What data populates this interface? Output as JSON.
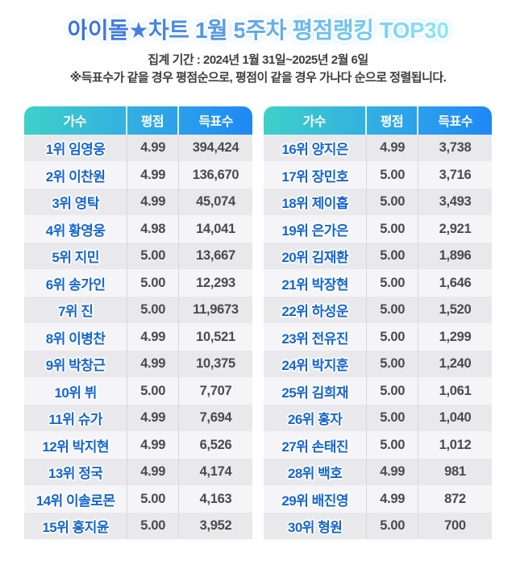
{
  "header": {
    "title": "아이돌★차트 1월 5주차 평점랭킹 TOP30",
    "period": "집계 기간 : 2024년 1월 31일~2025년 2월 6일",
    "note": "※득표수가 같을 경우 평점순으로, 평점이 같을 경우 가나다 순으로 정렬됩니다."
  },
  "colors": {
    "title_gradient_start": "#3b6fe0",
    "title_gradient_end": "#8ae9f7",
    "table_header_gradient_start": "#3fd0c9",
    "table_header_gradient_end": "#1e88f5",
    "name_blue": "#1565d0",
    "number_gray": "#4b4b4d",
    "row_odd_bg": "#e9e9eb",
    "row_even_bg": "#f5f5f7"
  },
  "columns": {
    "artist": "가수",
    "rating": "평점",
    "votes": "득표수"
  },
  "chart_data": {
    "type": "table",
    "title": "아이돌★차트 1월 5주차 평점랭킹 TOP30",
    "columns": [
      "가수",
      "평점",
      "득표수"
    ],
    "rows": [
      [
        "1위 임영웅",
        "4.99",
        "394,424"
      ],
      [
        "2위 이찬원",
        "4.99",
        "136,670"
      ],
      [
        "3위 영탁",
        "4.99",
        "45,074"
      ],
      [
        "4위 황영웅",
        "4.98",
        "14,041"
      ],
      [
        "5위 지민",
        "5.00",
        "13,667"
      ],
      [
        "6위 송가인",
        "5.00",
        "12,293"
      ],
      [
        "7위 진",
        "5.00",
        "11,9673"
      ],
      [
        "8위 이병찬",
        "4.99",
        "10,521"
      ],
      [
        "9위 박창근",
        "4.99",
        "10,375"
      ],
      [
        "10위 뷔",
        "5.00",
        "7,707"
      ],
      [
        "11위 슈가",
        "4.99",
        "7,694"
      ],
      [
        "12위 박지현",
        "4.99",
        "6,526"
      ],
      [
        "13위 정국",
        "4.99",
        "4,174"
      ],
      [
        "14위 이솔로몬",
        "5.00",
        "4,163"
      ],
      [
        "15위 홍지윤",
        "5.00",
        "3,952"
      ],
      [
        "16위 양지은",
        "4.99",
        "3,738"
      ],
      [
        "17위 장민호",
        "5.00",
        "3,716"
      ],
      [
        "18위 제이홉",
        "5.00",
        "3,493"
      ],
      [
        "19위 은가은",
        "5.00",
        "2,921"
      ],
      [
        "20위 김재환",
        "5.00",
        "1,896"
      ],
      [
        "21위 박장현",
        "5.00",
        "1,646"
      ],
      [
        "22위 하성운",
        "5.00",
        "1,520"
      ],
      [
        "23위 전유진",
        "5.00",
        "1,299"
      ],
      [
        "24위 박지훈",
        "5.00",
        "1,240"
      ],
      [
        "25위 김희재",
        "5.00",
        "1,061"
      ],
      [
        "26위 홍자",
        "5.00",
        "1,040"
      ],
      [
        "27위 손태진",
        "5.00",
        "1,012"
      ],
      [
        "28위 백호",
        "4.99",
        "981"
      ],
      [
        "29위 배진영",
        "4.99",
        "872"
      ],
      [
        "30위 형원",
        "5.00",
        "700"
      ]
    ]
  }
}
